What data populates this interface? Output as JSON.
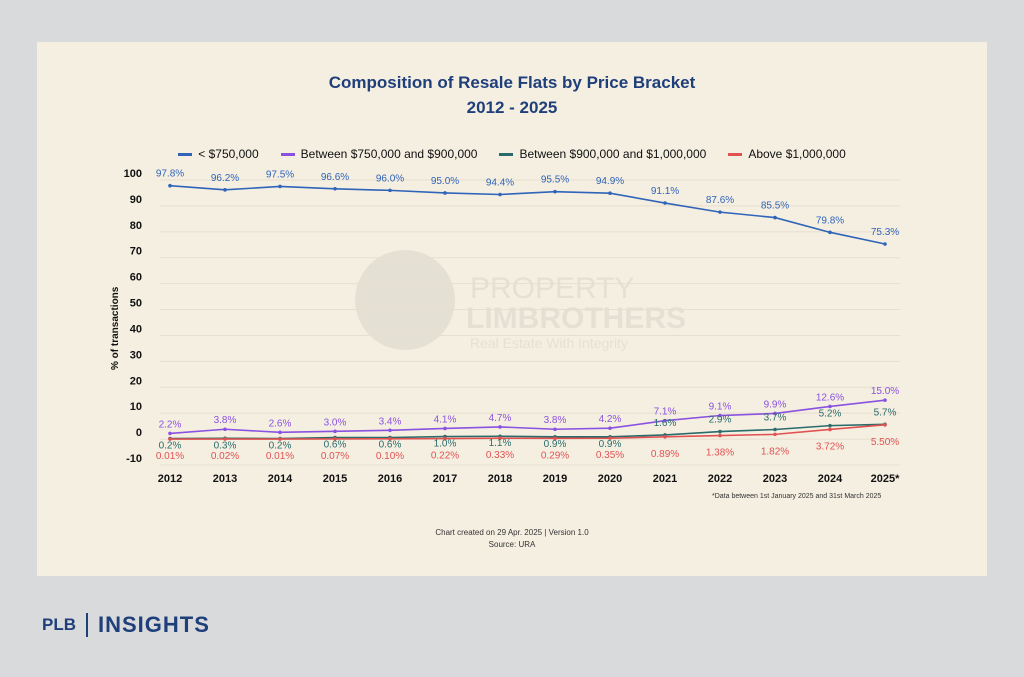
{
  "chart_data": {
    "type": "line",
    "title": "Composition of Resale Flats by Price Bracket",
    "subtitle": "2012 - 2025",
    "ylabel": "% of transactions",
    "ylim": [
      -10,
      100
    ],
    "yticks": [
      100,
      90,
      80,
      70,
      60,
      50,
      40,
      30,
      20,
      10,
      0,
      -10
    ],
    "categories": [
      "2012",
      "2013",
      "2014",
      "2015",
      "2016",
      "2017",
      "2018",
      "2019",
      "2020",
      "2021",
      "2022",
      "2023",
      "2024",
      "2025*"
    ],
    "series": [
      {
        "name": "< $750,000",
        "color": "#2f64b8",
        "values": [
          97.8,
          96.2,
          97.5,
          96.6,
          96.0,
          95.0,
          94.4,
          95.5,
          94.9,
          91.1,
          87.6,
          85.5,
          79.8,
          75.3
        ],
        "labels": [
          "97.8%",
          "96.2%",
          "97.5%",
          "96.6%",
          "96.0%",
          "95.0%",
          "94.4%",
          "95.5%",
          "94.9%",
          "91.1%",
          "87.6%",
          "85.5%",
          "79.8%",
          "75.3%"
        ]
      },
      {
        "name": "Between $750,000 and $900,000",
        "color": "#8a52e0",
        "values": [
          2.2,
          3.8,
          2.6,
          3.0,
          3.4,
          4.1,
          4.7,
          3.8,
          4.2,
          7.1,
          9.1,
          9.9,
          12.6,
          15.0
        ],
        "labels": [
          "2.2%",
          "3.8%",
          "2.6%",
          "3.0%",
          "3.4%",
          "4.1%",
          "4.7%",
          "3.8%",
          "4.2%",
          "7.1%",
          "9.1%",
          "9.9%",
          "12.6%",
          "15.0%"
        ]
      },
      {
        "name": "Between $900,000 and $1,000,000",
        "color": "#2a6b6b",
        "values": [
          0.2,
          0.3,
          0.2,
          0.6,
          0.6,
          1.0,
          1.1,
          0.9,
          0.9,
          1.6,
          2.9,
          3.7,
          5.2,
          5.7
        ],
        "labels": [
          "0.2%",
          "0.3%",
          "0.2%",
          "0.6%",
          "0.6%",
          "1.0%",
          "1.1%",
          "0.9%",
          "0.9%",
          "1.6%",
          "2.9%",
          "3.7%",
          "5.2%",
          "5.7%"
        ]
      },
      {
        "name": "Above $1,000,000",
        "color": "#e05252",
        "values": [
          0.01,
          0.02,
          0.01,
          0.07,
          0.1,
          0.22,
          0.33,
          0.29,
          0.35,
          0.89,
          1.38,
          1.82,
          3.72,
          5.5
        ],
        "labels": [
          "0.01%",
          "0.02%",
          "0.01%",
          "0.07%",
          "0.10%",
          "0.22%",
          "0.33%",
          "0.29%",
          "0.35%",
          "0.89%",
          "1.38%",
          "1.82%",
          "3.72%",
          "5.50%"
        ]
      }
    ],
    "footnote": "*Data between 1st January 2025 and 31st March 2025",
    "watermark": {
      "line1": "PROPERTY",
      "line2": "LIMBROTHERS",
      "tagline": "Real Estate With Integrity"
    }
  },
  "footer": {
    "created": "Chart created on 29 Apr. 2025 | Version 1.0",
    "source": "Source: URA"
  },
  "brand": {
    "left": "PLB",
    "right": "INSIGHTS"
  }
}
